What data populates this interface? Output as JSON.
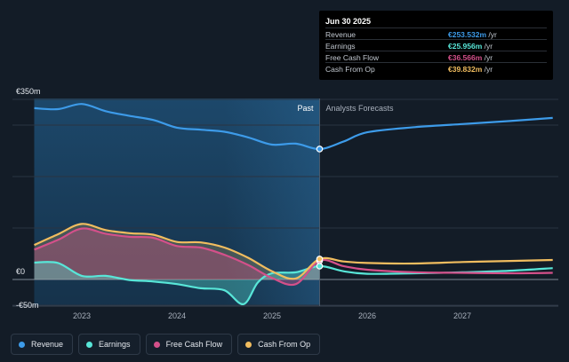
{
  "chart_data": {
    "type": "line",
    "y_unit": "€m",
    "ylim": [
      -70,
      370
    ],
    "y_ticks": [
      {
        "value": 350,
        "label": "€350m"
      },
      {
        "value": 0,
        "label": "€0"
      },
      {
        "value": -50,
        "label": "-€50m"
      }
    ],
    "x_ticks": [
      {
        "value": 2023.0,
        "label": "2023"
      },
      {
        "value": 2024.0,
        "label": "2024"
      },
      {
        "value": 2025.0,
        "label": "2025"
      },
      {
        "value": 2026.0,
        "label": "2026"
      },
      {
        "value": 2027.0,
        "label": "2027"
      }
    ],
    "xlim": [
      2022.27,
      2028.0
    ],
    "divider_x": 2025.5,
    "past_label": "Past",
    "forecast_label": "Analysts Forecasts",
    "series": [
      {
        "name": "Revenue",
        "color": "#3d9be9",
        "points": [
          [
            2022.5,
            333
          ],
          [
            2022.75,
            331
          ],
          [
            2023.0,
            341
          ],
          [
            2023.25,
            327
          ],
          [
            2023.5,
            318
          ],
          [
            2023.75,
            310
          ],
          [
            2024.0,
            295
          ],
          [
            2024.25,
            291
          ],
          [
            2024.5,
            287
          ],
          [
            2024.75,
            276
          ],
          [
            2025.0,
            262
          ],
          [
            2025.25,
            264
          ],
          [
            2025.5,
            253.5
          ],
          [
            2025.75,
            268
          ],
          [
            2026.0,
            286
          ],
          [
            2026.5,
            296
          ],
          [
            2027.0,
            302
          ],
          [
            2027.5,
            308
          ],
          [
            2027.95,
            314
          ]
        ]
      },
      {
        "name": "Earnings",
        "color": "#58e6d8",
        "points": [
          [
            2022.5,
            33
          ],
          [
            2022.75,
            32
          ],
          [
            2023.0,
            7
          ],
          [
            2023.25,
            7
          ],
          [
            2023.5,
            -1
          ],
          [
            2023.75,
            -4
          ],
          [
            2024.0,
            -9
          ],
          [
            2024.25,
            -17
          ],
          [
            2024.5,
            -21
          ],
          [
            2024.7,
            -48
          ],
          [
            2024.85,
            -6
          ],
          [
            2025.0,
            12
          ],
          [
            2025.25,
            14
          ],
          [
            2025.5,
            26
          ],
          [
            2025.75,
            16
          ],
          [
            2026.0,
            11
          ],
          [
            2026.5,
            12
          ],
          [
            2027.0,
            14
          ],
          [
            2027.5,
            17
          ],
          [
            2027.95,
            22
          ]
        ]
      },
      {
        "name": "Free Cash Flow",
        "color": "#d4508a",
        "points": [
          [
            2022.5,
            58
          ],
          [
            2022.75,
            77
          ],
          [
            2023.0,
            99
          ],
          [
            2023.25,
            89
          ],
          [
            2023.5,
            83
          ],
          [
            2023.75,
            81
          ],
          [
            2024.0,
            65
          ],
          [
            2024.25,
            62
          ],
          [
            2024.5,
            48
          ],
          [
            2024.75,
            28
          ],
          [
            2025.0,
            3
          ],
          [
            2025.25,
            -9
          ],
          [
            2025.5,
            36.5
          ],
          [
            2025.75,
            26
          ],
          [
            2026.0,
            19
          ],
          [
            2026.5,
            14
          ],
          [
            2027.0,
            13
          ],
          [
            2027.5,
            12
          ],
          [
            2027.95,
            13
          ]
        ]
      },
      {
        "name": "Cash From Op",
        "color": "#f1bd5f",
        "points": [
          [
            2022.5,
            67
          ],
          [
            2022.75,
            88
          ],
          [
            2023.0,
            108
          ],
          [
            2023.25,
            96
          ],
          [
            2023.5,
            90
          ],
          [
            2023.75,
            87
          ],
          [
            2024.0,
            73
          ],
          [
            2024.25,
            72
          ],
          [
            2024.5,
            62
          ],
          [
            2024.75,
            42
          ],
          [
            2025.0,
            16
          ],
          [
            2025.25,
            2
          ],
          [
            2025.5,
            39.8
          ],
          [
            2025.75,
            35
          ],
          [
            2026.0,
            32
          ],
          [
            2026.5,
            31
          ],
          [
            2027.0,
            34
          ],
          [
            2027.5,
            36
          ],
          [
            2027.95,
            38
          ]
        ]
      }
    ]
  },
  "tooltip": {
    "date": "Jun 30 2025",
    "rows": [
      {
        "label": "Revenue",
        "value": "€253.532m",
        "unit": " /yr",
        "color": "#3d9be9"
      },
      {
        "label": "Earnings",
        "value": "€25.956m",
        "unit": " /yr",
        "color": "#58e6d8"
      },
      {
        "label": "Free Cash Flow",
        "value": "€36.566m",
        "unit": " /yr",
        "color": "#d4508a"
      },
      {
        "label": "Cash From Op",
        "value": "€39.832m",
        "unit": " /yr",
        "color": "#f1bd5f"
      }
    ]
  },
  "legend": [
    {
      "label": "Revenue",
      "color": "#3d9be9"
    },
    {
      "label": "Earnings",
      "color": "#58e6d8"
    },
    {
      "label": "Free Cash Flow",
      "color": "#d4508a"
    },
    {
      "label": "Cash From Op",
      "color": "#f1bd5f"
    }
  ]
}
